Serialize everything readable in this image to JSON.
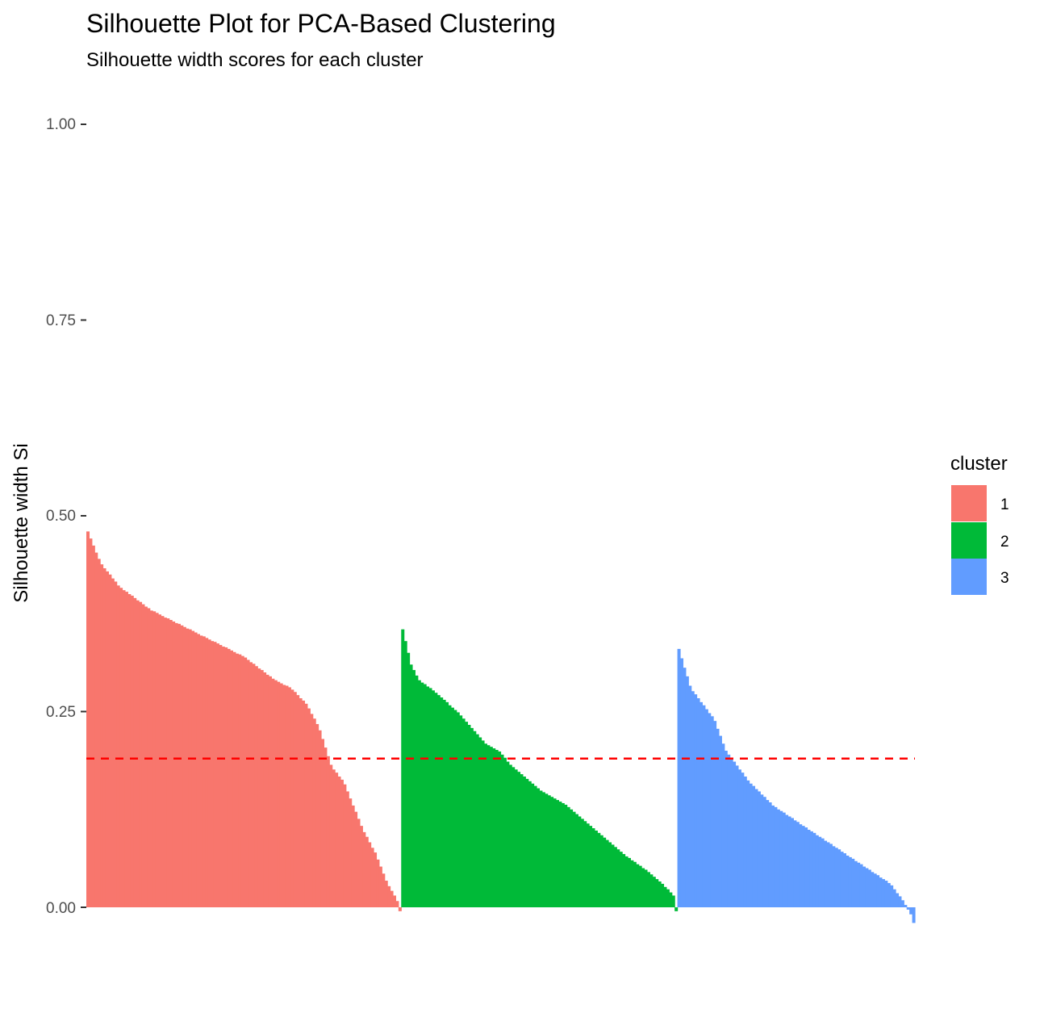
{
  "chart_data": {
    "type": "bar",
    "title": "Silhouette Plot for PCA-Based Clustering",
    "subtitle": "Silhouette width scores for each cluster",
    "xlabel": "",
    "ylabel": "Silhouette width Si",
    "ylim": [
      0,
      1
    ],
    "y_ticks": [
      "0.00",
      "0.25",
      "0.50",
      "0.75",
      "1.00"
    ],
    "y_tick_values": [
      0,
      0.25,
      0.5,
      0.75,
      1.0
    ],
    "grid": false,
    "legend": {
      "title": "cluster",
      "placement": "right"
    },
    "average_silhouette": 0.19,
    "average_line_color": "#FF0000",
    "total_observations": 300,
    "series": [
      {
        "name": "1",
        "color": "#F8766D",
        "count": 114,
        "profile": [
          [
            0,
            0.48
          ],
          [
            0.01,
            0.47
          ],
          [
            0.04,
            0.44
          ],
          [
            0.1,
            0.41
          ],
          [
            0.2,
            0.38
          ],
          [
            0.3,
            0.36
          ],
          [
            0.4,
            0.34
          ],
          [
            0.5,
            0.32
          ],
          [
            0.6,
            0.29
          ],
          [
            0.65,
            0.28
          ],
          [
            0.7,
            0.26
          ],
          [
            0.74,
            0.23
          ],
          [
            0.78,
            0.18
          ],
          [
            0.82,
            0.16
          ],
          [
            0.85,
            0.13
          ],
          [
            0.88,
            0.1
          ],
          [
            0.92,
            0.07
          ],
          [
            0.96,
            0.03
          ],
          [
            0.99,
            0.01
          ],
          [
            1.0,
            -0.005
          ]
        ]
      },
      {
        "name": "2",
        "color": "#00BA38",
        "count": 100,
        "profile": [
          [
            0,
            0.355
          ],
          [
            0.01,
            0.34
          ],
          [
            0.03,
            0.31
          ],
          [
            0.06,
            0.29
          ],
          [
            0.1,
            0.28
          ],
          [
            0.15,
            0.265
          ],
          [
            0.2,
            0.25
          ],
          [
            0.25,
            0.23
          ],
          [
            0.3,
            0.21
          ],
          [
            0.35,
            0.2
          ],
          [
            0.4,
            0.18
          ],
          [
            0.5,
            0.15
          ],
          [
            0.6,
            0.13
          ],
          [
            0.7,
            0.1
          ],
          [
            0.8,
            0.07
          ],
          [
            0.9,
            0.045
          ],
          [
            0.95,
            0.03
          ],
          [
            0.99,
            0.015
          ],
          [
            1.0,
            -0.005
          ]
        ]
      },
      {
        "name": "3",
        "color": "#619CFF",
        "count": 86,
        "profile": [
          [
            0,
            0.33
          ],
          [
            0.02,
            0.31
          ],
          [
            0.05,
            0.28
          ],
          [
            0.1,
            0.26
          ],
          [
            0.15,
            0.24
          ],
          [
            0.2,
            0.2
          ],
          [
            0.25,
            0.18
          ],
          [
            0.3,
            0.16
          ],
          [
            0.4,
            0.13
          ],
          [
            0.5,
            0.11
          ],
          [
            0.6,
            0.09
          ],
          [
            0.7,
            0.07
          ],
          [
            0.8,
            0.05
          ],
          [
            0.9,
            0.03
          ],
          [
            0.95,
            0.01
          ],
          [
            0.97,
            0.0
          ],
          [
            0.99,
            -0.01
          ],
          [
            1.0,
            -0.02
          ]
        ]
      }
    ]
  }
}
